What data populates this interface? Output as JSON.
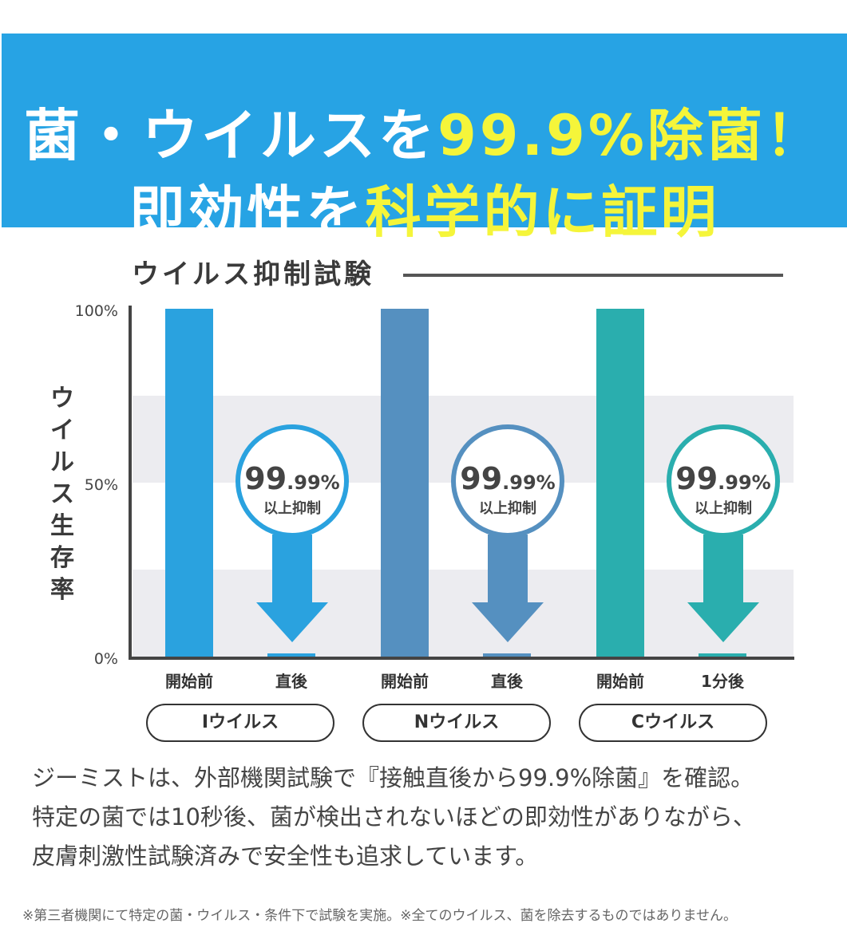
{
  "banner": {
    "line1_white": "菌・ウイルスを",
    "line1_yellow": "99.9%除菌！",
    "line2_white": "即効性を",
    "line2_yellow": "科学的に証明"
  },
  "chart_data": {
    "type": "bar",
    "title": "ウイルス抑制試験",
    "ylabel": "ウイルス生存率",
    "yticks": [
      "100%",
      "50%",
      "0%"
    ],
    "ylim": [
      0,
      100
    ],
    "groups": [
      {
        "name": "Iウイルス",
        "color": "#2aa2df",
        "categories": [
          "開始前",
          "直後"
        ],
        "values": [
          100,
          0.01
        ],
        "badge_big": "99",
        "badge_small": ".99%",
        "badge_sub": "以上抑制"
      },
      {
        "name": "Nウイルス",
        "color": "#5590c0",
        "categories": [
          "開始前",
          "直後"
        ],
        "values": [
          100,
          0.01
        ],
        "badge_big": "99",
        "badge_small": ".99%",
        "badge_sub": "以上抑制"
      },
      {
        "name": "Cウイルス",
        "color": "#2aaeae",
        "categories": [
          "開始前",
          "1分後"
        ],
        "values": [
          100,
          0.01
        ],
        "badge_big": "99",
        "badge_small": ".99%",
        "badge_sub": "以上抑制"
      }
    ]
  },
  "text": {
    "para": [
      "ジーミストは、外部機関試験で『接触直後から99.9%除菌』を確認。",
      "特定の菌では10秒後、菌が検出されないほどの即効性がありながら、",
      "皮膚刺激性試験済みで安全性も追求しています。"
    ],
    "note": "※第三者機関にて特定の菌・ウイルス・条件下で試験を実施。※全てのウイルス、菌を除去するものではありません。"
  }
}
